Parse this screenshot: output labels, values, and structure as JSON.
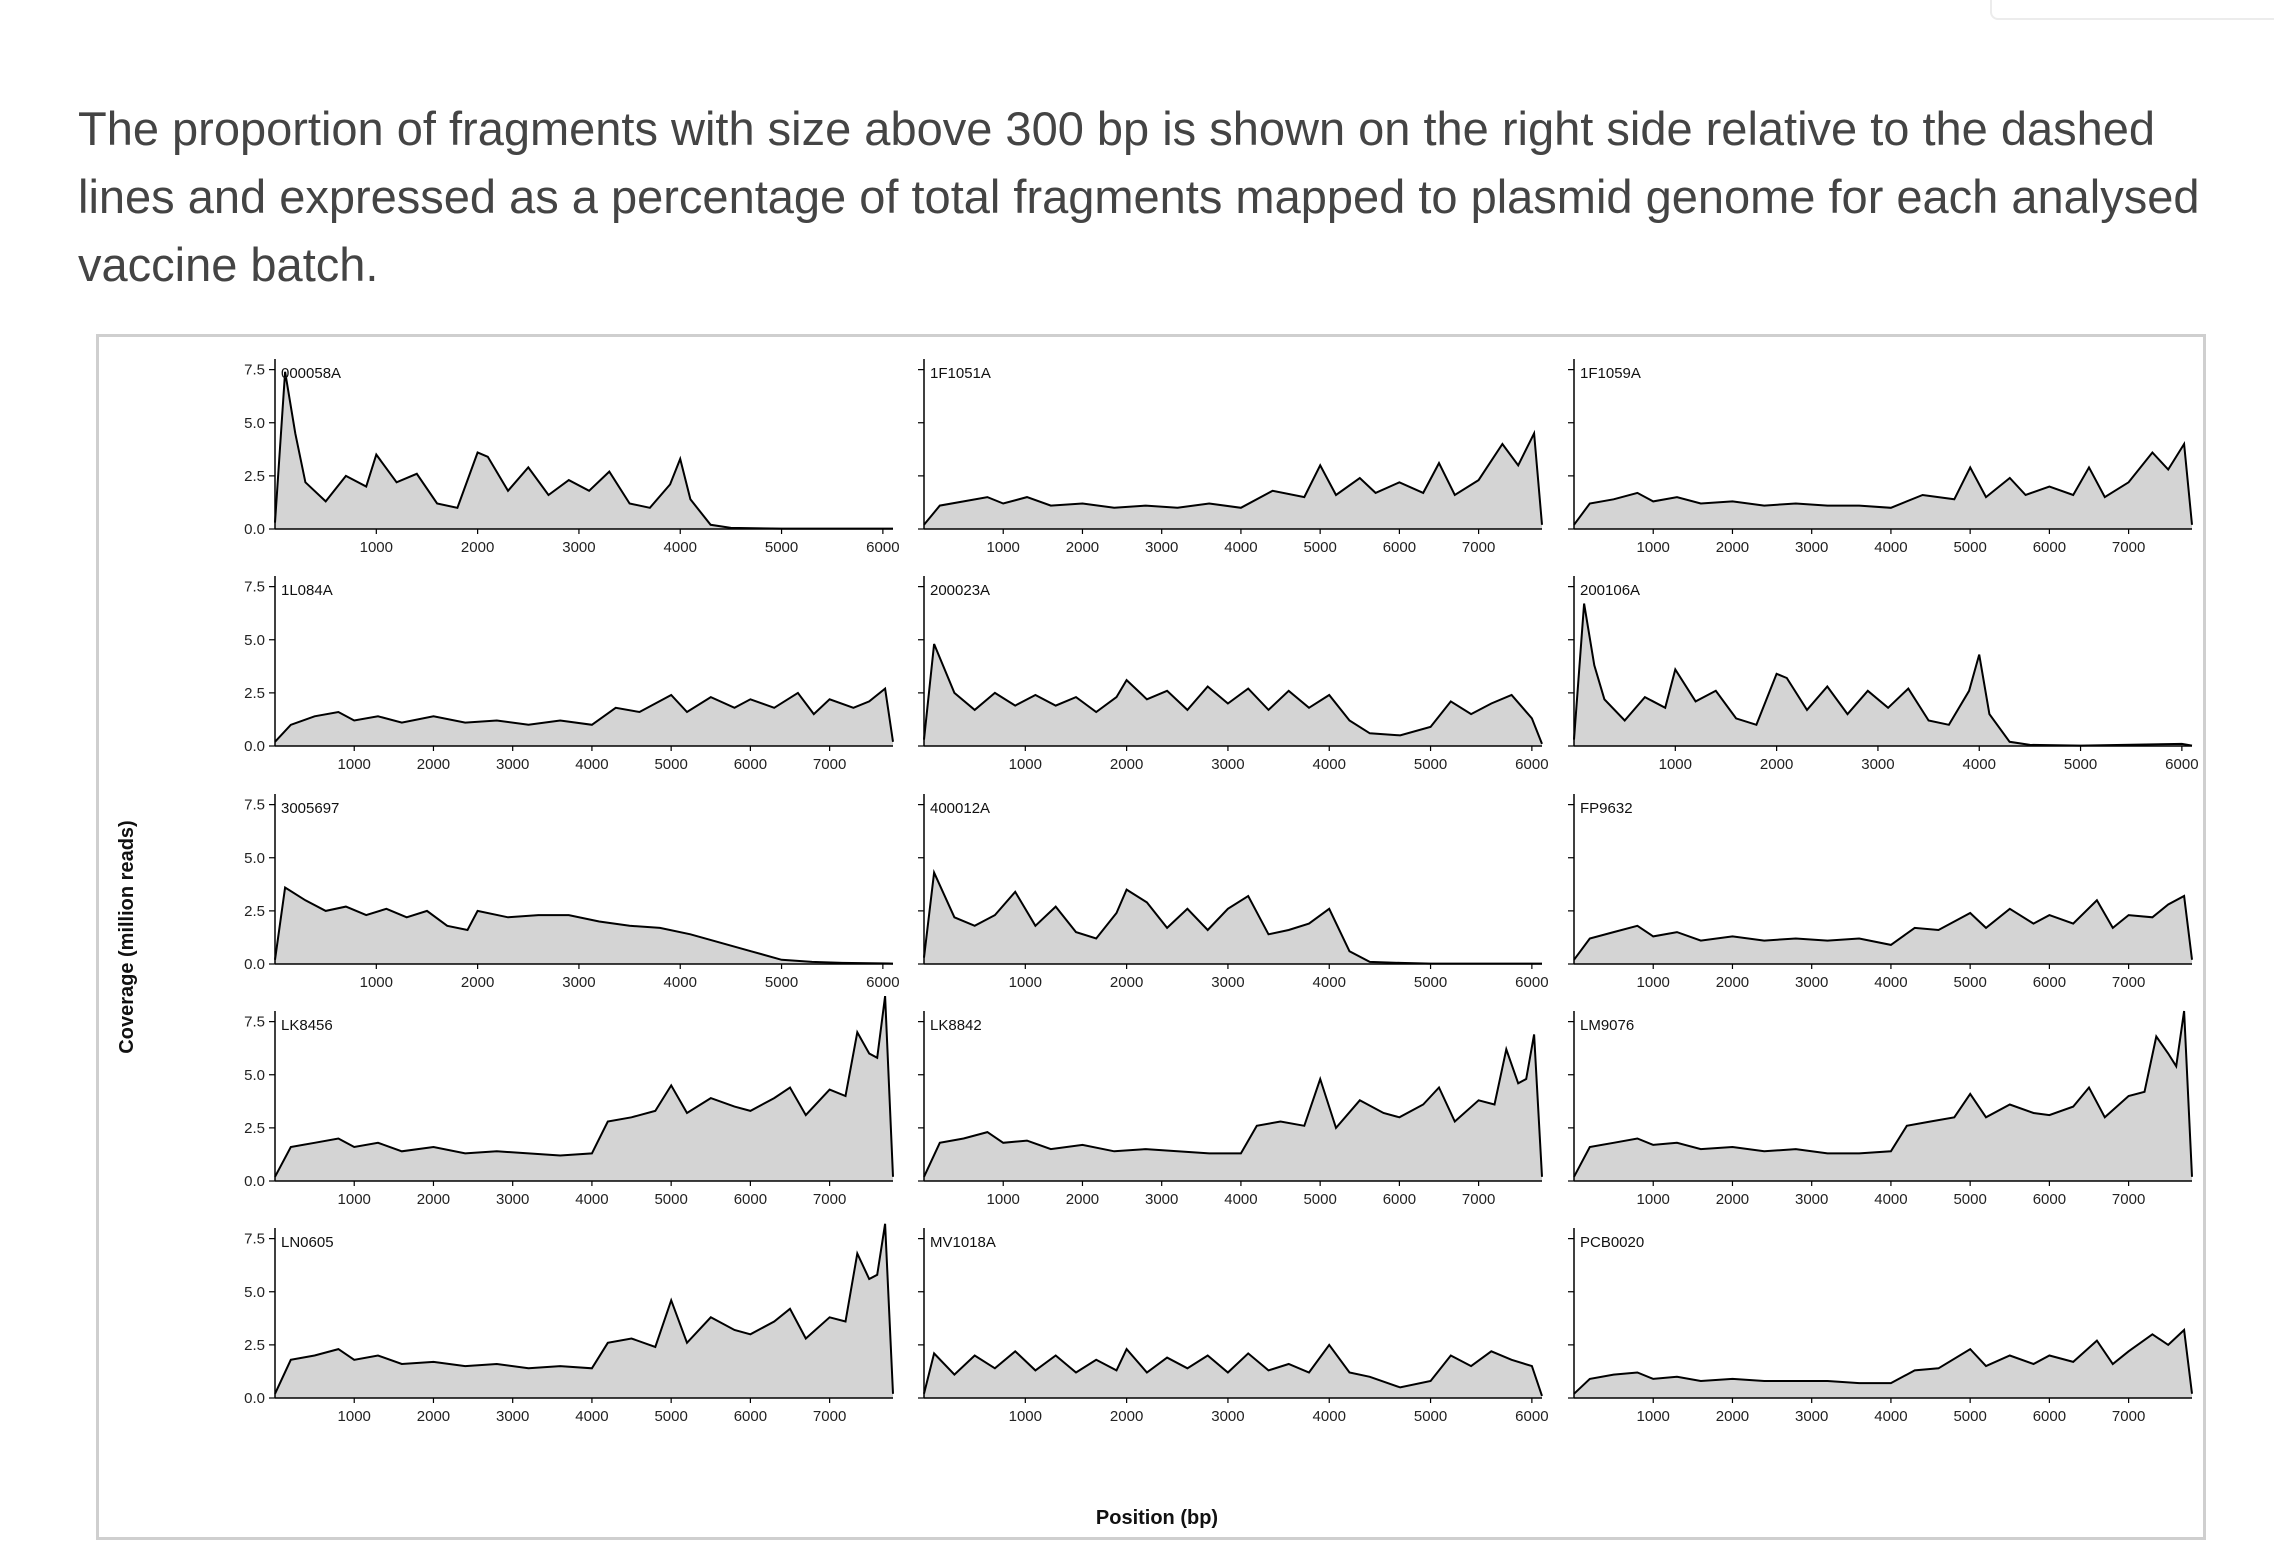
{
  "caption": "The proportion of fragments with size above 300 bp is shown on the right side relative to the dashed lines and expressed as a percentage of total fragments mapped to plasmid genome for each analysed vaccine batch.",
  "chart_data": {
    "type": "area",
    "layout": "small multiples, 5 rows x 3 columns",
    "ylabel": "Coverage (million reads)",
    "xlabel": "Position (bp)",
    "ylim": [
      0,
      8
    ],
    "yticks": [
      "0.0",
      "2.5",
      "5.0",
      "7.5"
    ],
    "fill_color": "#d4d4d4",
    "line_color": "#000000",
    "panels": [
      {
        "label": "000058A",
        "xmax": 6100,
        "xticks": [
          1000,
          2000,
          3000,
          4000,
          5000,
          6000
        ],
        "x": [
          0,
          100,
          200,
          300,
          500,
          700,
          900,
          1000,
          1200,
          1400,
          1600,
          1800,
          2000,
          2100,
          2300,
          2500,
          2700,
          2900,
          3100,
          3300,
          3500,
          3700,
          3900,
          4000,
          4100,
          4300,
          4500,
          5000,
          6100
        ],
        "y": [
          0.3,
          7.4,
          4.5,
          2.2,
          1.3,
          2.5,
          2.0,
          3.5,
          2.2,
          2.6,
          1.2,
          1.0,
          3.6,
          3.4,
          1.8,
          2.9,
          1.6,
          2.3,
          1.8,
          2.7,
          1.2,
          1.0,
          2.1,
          3.3,
          1.4,
          0.2,
          0.05,
          0.02,
          0.02
        ]
      },
      {
        "label": "1F1051A",
        "xmax": 7800,
        "xticks": [
          1000,
          2000,
          3000,
          4000,
          5000,
          6000,
          7000
        ],
        "x": [
          0,
          200,
          500,
          800,
          1000,
          1300,
          1600,
          2000,
          2400,
          2800,
          3200,
          3600,
          4000,
          4400,
          4800,
          5000,
          5200,
          5500,
          5700,
          6000,
          6300,
          6500,
          6700,
          7000,
          7300,
          7500,
          7700,
          7800
        ],
        "y": [
          0.2,
          1.1,
          1.3,
          1.5,
          1.2,
          1.5,
          1.1,
          1.2,
          1.0,
          1.1,
          1.0,
          1.2,
          1.0,
          1.8,
          1.5,
          3.0,
          1.6,
          2.4,
          1.7,
          2.2,
          1.7,
          3.1,
          1.6,
          2.3,
          4.0,
          3.0,
          4.5,
          0.2
        ]
      },
      {
        "label": "1F1059A",
        "xmax": 7800,
        "xticks": [
          1000,
          2000,
          3000,
          4000,
          5000,
          6000,
          7000
        ],
        "x": [
          0,
          200,
          500,
          800,
          1000,
          1300,
          1600,
          2000,
          2400,
          2800,
          3200,
          3600,
          4000,
          4400,
          4800,
          5000,
          5200,
          5500,
          5700,
          6000,
          6300,
          6500,
          6700,
          7000,
          7300,
          7500,
          7700,
          7800
        ],
        "y": [
          0.2,
          1.2,
          1.4,
          1.7,
          1.3,
          1.5,
          1.2,
          1.3,
          1.1,
          1.2,
          1.1,
          1.1,
          1.0,
          1.6,
          1.4,
          2.9,
          1.5,
          2.4,
          1.6,
          2.0,
          1.6,
          2.9,
          1.5,
          2.2,
          3.6,
          2.8,
          4.0,
          0.2
        ]
      },
      {
        "label": "1L084A",
        "xmax": 7800,
        "xticks": [
          1000,
          2000,
          3000,
          4000,
          5000,
          6000,
          7000
        ],
        "x": [
          0,
          200,
          500,
          800,
          1000,
          1300,
          1600,
          2000,
          2400,
          2800,
          3200,
          3600,
          4000,
          4300,
          4600,
          5000,
          5200,
          5500,
          5800,
          6000,
          6300,
          6600,
          6800,
          7000,
          7300,
          7500,
          7700,
          7800
        ],
        "y": [
          0.2,
          1.0,
          1.4,
          1.6,
          1.2,
          1.4,
          1.1,
          1.4,
          1.1,
          1.2,
          1.0,
          1.2,
          1.0,
          1.8,
          1.6,
          2.4,
          1.6,
          2.3,
          1.8,
          2.2,
          1.8,
          2.5,
          1.5,
          2.2,
          1.8,
          2.1,
          2.7,
          0.2
        ]
      },
      {
        "label": "200023A",
        "xmax": 6100,
        "xticks": [
          1000,
          2000,
          3000,
          4000,
          5000,
          6000
        ],
        "x": [
          0,
          100,
          300,
          500,
          700,
          900,
          1100,
          1300,
          1500,
          1700,
          1900,
          2000,
          2200,
          2400,
          2600,
          2800,
          3000,
          3200,
          3400,
          3600,
          3800,
          4000,
          4200,
          4400,
          4700,
          5000,
          5200,
          5400,
          5600,
          5800,
          6000,
          6100
        ],
        "y": [
          0.3,
          4.8,
          2.5,
          1.7,
          2.5,
          1.9,
          2.4,
          1.9,
          2.3,
          1.6,
          2.3,
          3.1,
          2.2,
          2.6,
          1.7,
          2.8,
          2.0,
          2.7,
          1.7,
          2.6,
          1.8,
          2.4,
          1.2,
          0.6,
          0.5,
          0.9,
          2.1,
          1.5,
          2.0,
          2.4,
          1.3,
          0.1
        ]
      },
      {
        "label": "200106A",
        "xmax": 6100,
        "xticks": [
          1000,
          2000,
          3000,
          4000,
          5000,
          6000
        ],
        "x": [
          0,
          100,
          200,
          300,
          500,
          700,
          900,
          1000,
          1200,
          1400,
          1600,
          1800,
          2000,
          2100,
          2300,
          2500,
          2700,
          2900,
          3100,
          3300,
          3500,
          3700,
          3900,
          4000,
          4100,
          4300,
          4500,
          5000,
          6000,
          6100
        ],
        "y": [
          0.3,
          6.7,
          3.8,
          2.2,
          1.2,
          2.3,
          1.8,
          3.6,
          2.1,
          2.6,
          1.3,
          1.0,
          3.4,
          3.2,
          1.7,
          2.8,
          1.5,
          2.6,
          1.8,
          2.7,
          1.2,
          1.0,
          2.6,
          4.3,
          1.5,
          0.2,
          0.05,
          0.02,
          0.1,
          0.02
        ]
      },
      {
        "label": "3005697",
        "xmax": 6100,
        "xticks": [
          1000,
          2000,
          3000,
          4000,
          5000,
          6000
        ],
        "x": [
          0,
          100,
          300,
          500,
          700,
          900,
          1100,
          1300,
          1500,
          1700,
          1900,
          2000,
          2300,
          2600,
          2900,
          3200,
          3500,
          3800,
          4100,
          4400,
          4700,
          5000,
          5300,
          5600,
          6100
        ],
        "y": [
          0.2,
          3.6,
          3.0,
          2.5,
          2.7,
          2.3,
          2.6,
          2.2,
          2.5,
          1.8,
          1.6,
          2.5,
          2.2,
          2.3,
          2.3,
          2.0,
          1.8,
          1.7,
          1.4,
          1.0,
          0.6,
          0.2,
          0.1,
          0.05,
          0.02
        ]
      },
      {
        "label": "400012A",
        "xmax": 6100,
        "xticks": [
          1000,
          2000,
          3000,
          4000,
          5000,
          6000
        ],
        "x": [
          0,
          100,
          300,
          500,
          700,
          900,
          1100,
          1300,
          1500,
          1700,
          1900,
          2000,
          2200,
          2400,
          2600,
          2800,
          3000,
          3200,
          3400,
          3600,
          3800,
          4000,
          4200,
          4400,
          4700,
          5000,
          6100
        ],
        "y": [
          0.3,
          4.3,
          2.2,
          1.8,
          2.3,
          3.4,
          1.8,
          2.7,
          1.5,
          1.2,
          2.4,
          3.5,
          2.9,
          1.7,
          2.6,
          1.6,
          2.6,
          3.2,
          1.4,
          1.6,
          1.9,
          2.6,
          0.6,
          0.1,
          0.05,
          0.02,
          0.02
        ]
      },
      {
        "label": "FP9632",
        "xmax": 7800,
        "xticks": [
          1000,
          2000,
          3000,
          4000,
          5000,
          6000,
          7000
        ],
        "x": [
          0,
          200,
          500,
          800,
          1000,
          1300,
          1600,
          2000,
          2400,
          2800,
          3200,
          3600,
          4000,
          4300,
          4600,
          5000,
          5200,
          5500,
          5800,
          6000,
          6300,
          6600,
          6800,
          7000,
          7300,
          7500,
          7700,
          7800
        ],
        "y": [
          0.2,
          1.2,
          1.5,
          1.8,
          1.3,
          1.5,
          1.1,
          1.3,
          1.1,
          1.2,
          1.1,
          1.2,
          0.9,
          1.7,
          1.6,
          2.4,
          1.7,
          2.6,
          1.9,
          2.3,
          1.9,
          3.0,
          1.7,
          2.3,
          2.2,
          2.8,
          3.2,
          0.2
        ]
      },
      {
        "label": "LK8456",
        "xmax": 7800,
        "xticks": [
          1000,
          2000,
          3000,
          4000,
          5000,
          6000,
          7000
        ],
        "x": [
          0,
          200,
          500,
          800,
          1000,
          1300,
          1600,
          2000,
          2400,
          2800,
          3200,
          3600,
          4000,
          4200,
          4500,
          4800,
          5000,
          5200,
          5500,
          5800,
          6000,
          6300,
          6500,
          6700,
          7000,
          7200,
          7350,
          7500,
          7600,
          7700,
          7800
        ],
        "y": [
          0.2,
          1.6,
          1.8,
          2.0,
          1.6,
          1.8,
          1.4,
          1.6,
          1.3,
          1.4,
          1.3,
          1.2,
          1.3,
          2.8,
          3.0,
          3.3,
          4.5,
          3.2,
          3.9,
          3.5,
          3.3,
          3.9,
          4.4,
          3.1,
          4.3,
          4.0,
          7.0,
          6.0,
          5.8,
          8.7,
          0.2
        ]
      },
      {
        "label": "LK8842",
        "xmax": 7800,
        "xticks": [
          1000,
          2000,
          3000,
          4000,
          5000,
          6000,
          7000
        ],
        "x": [
          0,
          200,
          500,
          800,
          1000,
          1300,
          1600,
          2000,
          2400,
          2800,
          3200,
          3600,
          4000,
          4200,
          4500,
          4800,
          5000,
          5200,
          5500,
          5800,
          6000,
          6300,
          6500,
          6700,
          7000,
          7200,
          7350,
          7500,
          7600,
          7700,
          7800
        ],
        "y": [
          0.2,
          1.8,
          2.0,
          2.3,
          1.8,
          1.9,
          1.5,
          1.7,
          1.4,
          1.5,
          1.4,
          1.3,
          1.3,
          2.6,
          2.8,
          2.6,
          4.8,
          2.5,
          3.8,
          3.2,
          3.0,
          3.6,
          4.4,
          2.8,
          3.8,
          3.6,
          6.2,
          4.6,
          4.8,
          6.9,
          0.2
        ]
      },
      {
        "label": "LM9076",
        "xmax": 7800,
        "xticks": [
          1000,
          2000,
          3000,
          4000,
          5000,
          6000,
          7000
        ],
        "x": [
          0,
          200,
          500,
          800,
          1000,
          1300,
          1600,
          2000,
          2400,
          2800,
          3200,
          3600,
          4000,
          4200,
          4500,
          4800,
          5000,
          5200,
          5500,
          5800,
          6000,
          6300,
          6500,
          6700,
          7000,
          7200,
          7350,
          7500,
          7600,
          7700,
          7800
        ],
        "y": [
          0.2,
          1.6,
          1.8,
          2.0,
          1.7,
          1.8,
          1.5,
          1.6,
          1.4,
          1.5,
          1.3,
          1.3,
          1.4,
          2.6,
          2.8,
          3.0,
          4.1,
          3.0,
          3.6,
          3.2,
          3.1,
          3.5,
          4.4,
          3.0,
          4.0,
          4.2,
          6.8,
          6.0,
          5.4,
          8.0,
          0.2
        ]
      },
      {
        "label": "LN0605",
        "xmax": 7800,
        "xticks": [
          1000,
          2000,
          3000,
          4000,
          5000,
          6000,
          7000
        ],
        "x": [
          0,
          200,
          500,
          800,
          1000,
          1300,
          1600,
          2000,
          2400,
          2800,
          3200,
          3600,
          4000,
          4200,
          4500,
          4800,
          5000,
          5200,
          5500,
          5800,
          6000,
          6300,
          6500,
          6700,
          7000,
          7200,
          7350,
          7500,
          7600,
          7700,
          7800
        ],
        "y": [
          0.2,
          1.8,
          2.0,
          2.3,
          1.8,
          2.0,
          1.6,
          1.7,
          1.5,
          1.6,
          1.4,
          1.5,
          1.4,
          2.6,
          2.8,
          2.4,
          4.6,
          2.6,
          3.8,
          3.2,
          3.0,
          3.6,
          4.2,
          2.8,
          3.8,
          3.6,
          6.8,
          5.6,
          5.8,
          8.2,
          0.2
        ]
      },
      {
        "label": "MV1018A",
        "xmax": 6100,
        "xticks": [
          1000,
          2000,
          3000,
          4000,
          5000,
          6000
        ],
        "x": [
          0,
          100,
          300,
          500,
          700,
          900,
          1100,
          1300,
          1500,
          1700,
          1900,
          2000,
          2200,
          2400,
          2600,
          2800,
          3000,
          3200,
          3400,
          3600,
          3800,
          4000,
          4200,
          4400,
          4700,
          5000,
          5200,
          5400,
          5600,
          5800,
          6000,
          6100
        ],
        "y": [
          0.2,
          2.1,
          1.1,
          2.0,
          1.4,
          2.2,
          1.3,
          2.0,
          1.2,
          1.8,
          1.3,
          2.3,
          1.2,
          1.9,
          1.4,
          2.0,
          1.2,
          2.1,
          1.3,
          1.6,
          1.2,
          2.5,
          1.2,
          1.0,
          0.5,
          0.8,
          2.0,
          1.5,
          2.2,
          1.8,
          1.5,
          0.1
        ]
      },
      {
        "label": "PCB0020",
        "xmax": 7800,
        "xticks": [
          1000,
          2000,
          3000,
          4000,
          5000,
          6000,
          7000
        ],
        "x": [
          0,
          200,
          500,
          800,
          1000,
          1300,
          1600,
          2000,
          2400,
          2800,
          3200,
          3600,
          4000,
          4300,
          4600,
          5000,
          5200,
          5500,
          5800,
          6000,
          6300,
          6600,
          6800,
          7000,
          7300,
          7500,
          7700,
          7800
        ],
        "y": [
          0.2,
          0.9,
          1.1,
          1.2,
          0.9,
          1.0,
          0.8,
          0.9,
          0.8,
          0.8,
          0.8,
          0.7,
          0.7,
          1.3,
          1.4,
          2.3,
          1.5,
          2.0,
          1.6,
          2.0,
          1.7,
          2.7,
          1.6,
          2.2,
          3.0,
          2.5,
          3.2,
          0.2
        ]
      }
    ]
  }
}
